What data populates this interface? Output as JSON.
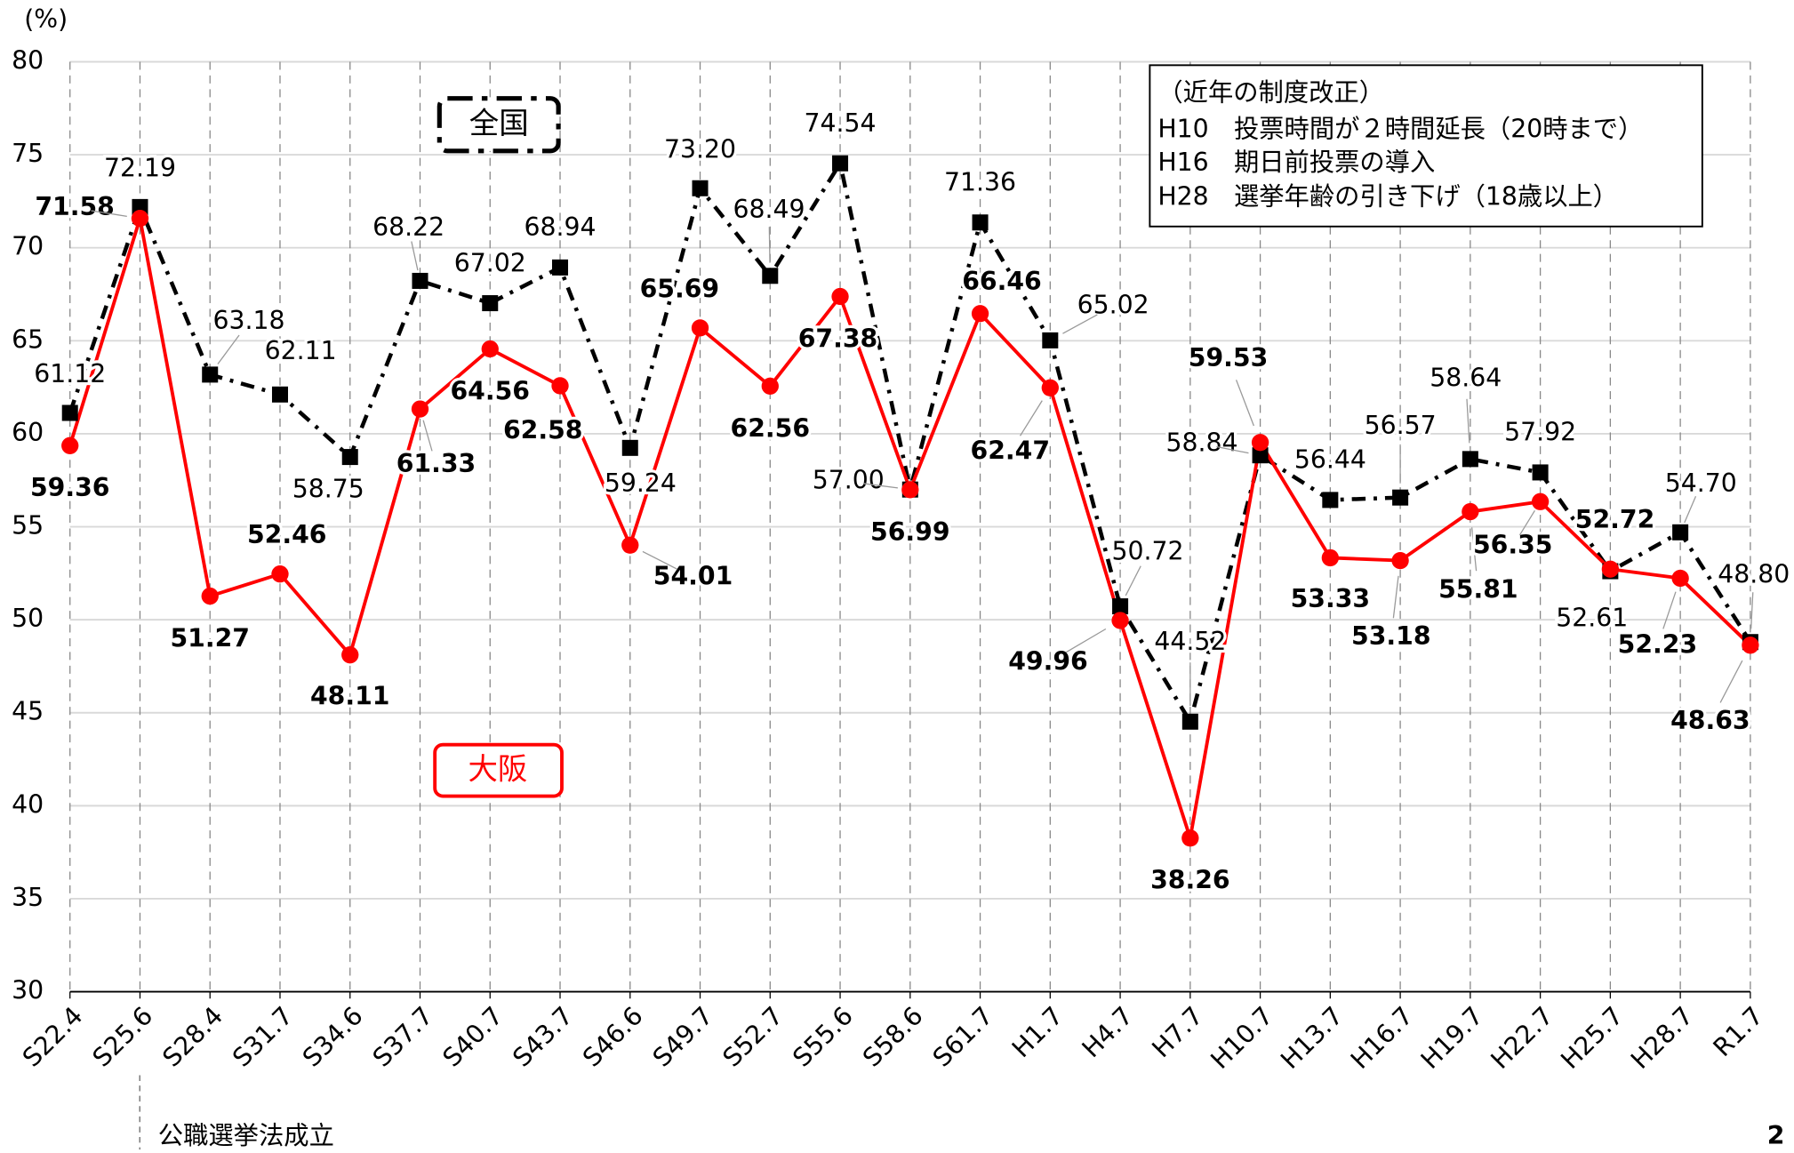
{
  "chart_data": {
    "type": "line",
    "y_label": "(%)",
    "categories": [
      "S22.4",
      "S25.6",
      "S28.4",
      "S31.7",
      "S34.6",
      "S37.7",
      "S40.7",
      "S43.7",
      "S46.6",
      "S49.7",
      "S52.7",
      "S55.6",
      "S58.6",
      "S61.7",
      "H1.7",
      "H4.7",
      "H7.7",
      "H10.7",
      "H13.7",
      "H16.7",
      "H19.7",
      "H22.7",
      "H25.7",
      "H28.7",
      "R1.7"
    ],
    "series": [
      {
        "name": "全国",
        "color": "#000000",
        "dash": true,
        "marker": "square",
        "values": [
          61.12,
          72.19,
          63.18,
          62.11,
          58.75,
          68.22,
          67.02,
          68.94,
          59.24,
          73.2,
          68.49,
          74.54,
          57.0,
          71.36,
          65.02,
          50.72,
          44.52,
          58.84,
          56.44,
          56.57,
          58.64,
          57.92,
          52.61,
          54.7,
          48.8
        ],
        "value_labels": [
          "61.12",
          "72.19",
          "63.18",
          "62.11",
          "58.75",
          "68.22",
          "67.02",
          "68.94",
          "59.24",
          "73.20",
          "68.49",
          "74.54",
          "57.00",
          "71.36",
          "65.02",
          "50.72",
          "44.52",
          "58.84",
          "56.44",
          "56.57",
          "58.64",
          "57.92",
          "52.61",
          "54.70",
          "48.80"
        ]
      },
      {
        "name": "大阪",
        "color": "#ff0000",
        "dash": false,
        "marker": "circle",
        "values": [
          59.36,
          71.58,
          51.27,
          52.46,
          48.11,
          61.33,
          64.56,
          62.58,
          54.01,
          65.69,
          62.56,
          67.38,
          56.99,
          66.46,
          62.47,
          49.96,
          38.26,
          59.53,
          53.33,
          53.18,
          55.81,
          56.35,
          52.72,
          52.23,
          48.63
        ],
        "value_labels": [
          "59.36",
          "71.58",
          "51.27",
          "52.46",
          "48.11",
          "61.33",
          "64.56",
          "62.58",
          "54.01",
          "65.69",
          "62.56",
          "67.38",
          "56.99",
          "66.46",
          "62.47",
          "49.96",
          "38.26",
          "59.53",
          "53.33",
          "53.18",
          "55.81",
          "56.35",
          "52.72",
          "52.23",
          "48.63"
        ]
      }
    ],
    "ylim": [
      30,
      80
    ],
    "yticks": [
      30,
      35,
      40,
      45,
      50,
      55,
      60,
      65,
      70,
      75,
      80
    ],
    "grid": true,
    "notes_box": [
      "（近年の制度改正）",
      "H10　投票時間が２時間延長（20時まで）",
      "H16　期日前投票の導入",
      "H28　選挙年齢の引き下げ（18歳以上）"
    ],
    "annotation": "公職選挙法成立",
    "page_number": "2"
  }
}
